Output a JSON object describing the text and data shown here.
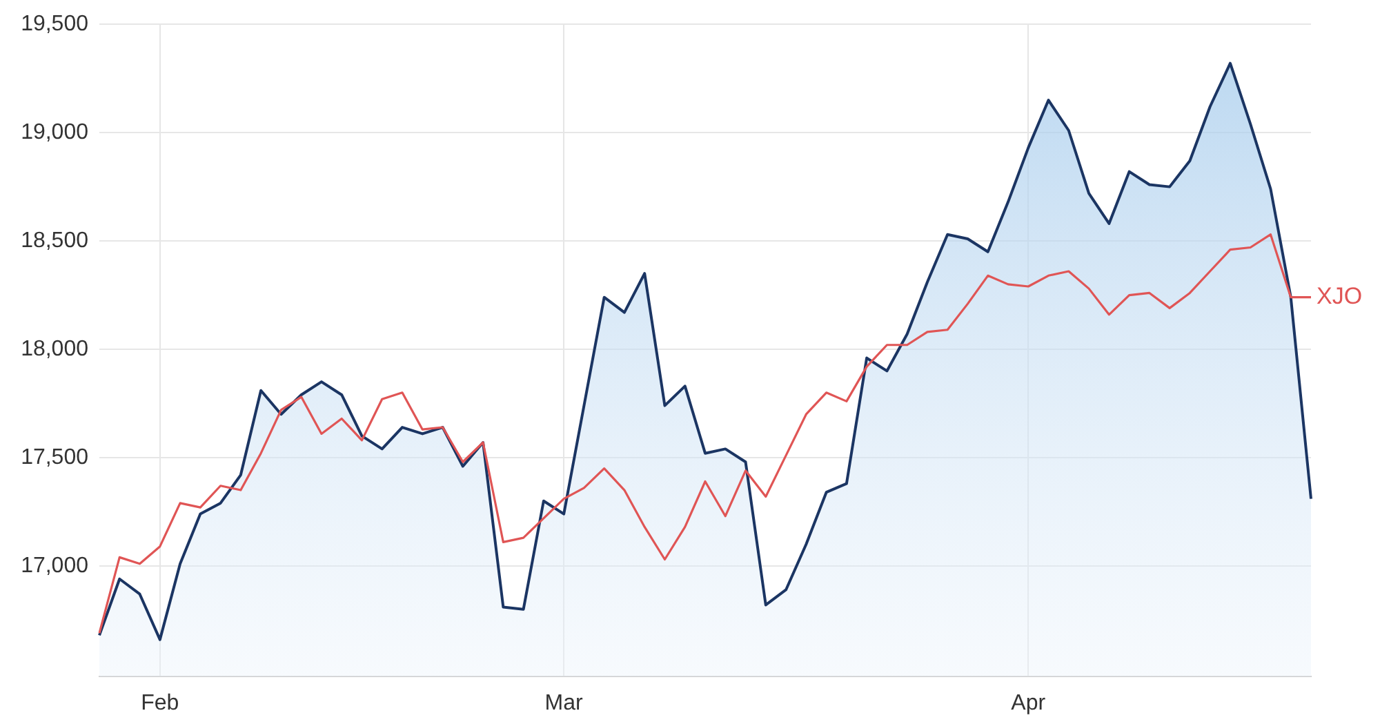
{
  "chart_data": {
    "type": "line",
    "categories": [
      null,
      null,
      null,
      "Feb",
      null,
      null,
      null,
      null,
      null,
      null,
      null,
      null,
      null,
      null,
      null,
      null,
      null,
      null,
      null,
      null,
      null,
      null,
      null,
      "Mar",
      null,
      null,
      null,
      null,
      null,
      null,
      null,
      null,
      null,
      null,
      null,
      null,
      null,
      null,
      null,
      null,
      null,
      null,
      null,
      null,
      null,
      null,
      "Apr",
      null,
      null,
      null,
      null,
      null,
      null,
      null,
      null,
      null,
      null,
      null,
      null,
      null,
      null
    ],
    "series": [
      {
        "type": "area",
        "color": "#1b3563",
        "values": [
          16680,
          16940,
          16870,
          16660,
          17010,
          17240,
          17290,
          17420,
          17810,
          17700,
          17790,
          17850,
          17790,
          17600,
          17540,
          17640,
          17610,
          17640,
          17460,
          17570,
          16810,
          16800,
          17300,
          17240,
          17740,
          18240,
          18170,
          18350,
          17740,
          17830,
          17520,
          17540,
          17480,
          16820,
          16890,
          17100,
          17340,
          17380,
          17960,
          17900,
          18070,
          18310,
          18530,
          18510,
          18450,
          18680,
          18930,
          19150,
          19010,
          18720,
          18580,
          18820,
          18760,
          18750,
          18870,
          19120,
          19320,
          19040,
          18740,
          18240,
          17310
        ]
      },
      {
        "type": "line",
        "name": "XJO",
        "color": "#e05555",
        "values": [
          16690,
          17040,
          17010,
          17090,
          17290,
          17270,
          17370,
          17350,
          17520,
          17720,
          17780,
          17610,
          17680,
          17580,
          17770,
          17800,
          17630,
          17640,
          17480,
          17570,
          17110,
          17130,
          17220,
          17310,
          17360,
          17450,
          17350,
          17180,
          17030,
          17180,
          17390,
          17230,
          17440,
          17320,
          17510,
          17700,
          17800,
          17760,
          17920,
          18020,
          18020,
          18080,
          18090,
          18210,
          18340,
          18300,
          18290,
          18340,
          18360,
          18280,
          18160,
          18250,
          18260,
          18190,
          18260,
          18360,
          18460,
          18470,
          18530,
          18240,
          18240
        ]
      }
    ],
    "ylim": [
      16490,
      19500
    ],
    "yticks": [
      {
        "value": 17000,
        "label": "17,000"
      },
      {
        "value": 17500,
        "label": "17,500"
      },
      {
        "value": 18000,
        "label": "18,000"
      },
      {
        "value": 18500,
        "label": "18,500"
      },
      {
        "value": 19000,
        "label": "19,000"
      },
      {
        "value": 19500,
        "label": "19,500"
      }
    ],
    "grid": true,
    "legend": false,
    "marker": "none",
    "line_style": "solid"
  }
}
